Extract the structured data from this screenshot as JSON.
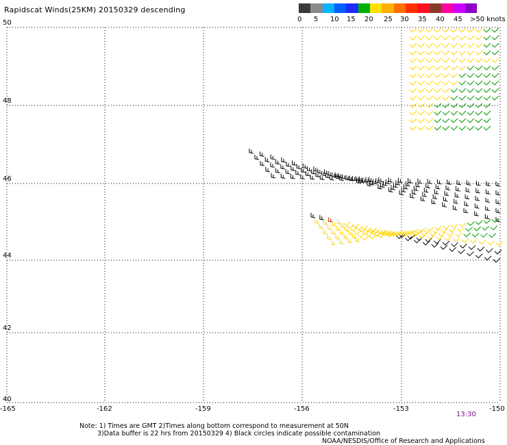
{
  "title": "Rapidscat Winds(25KM) 20150329 descending",
  "colorbar": {
    "colors": [
      "#3a3a3a",
      "#8a8a8a",
      "#00b4ff",
      "#0060ff",
      "#1c2cff",
      "#00b000",
      "#ffe000",
      "#ffb000",
      "#ff7000",
      "#ff3000",
      "#ff1020",
      "#8a3a2a",
      "#ff00a0",
      "#c800ff",
      "#8c00c8"
    ],
    "labels": [
      "0",
      "5",
      "10",
      "15",
      "20",
      "25",
      "30",
      "35",
      "40",
      "45",
      ">50 knots"
    ]
  },
  "axes": {
    "lat_labels": [
      "50",
      "48",
      "46",
      "44",
      "42",
      "40"
    ],
    "lon_labels": [
      "-165",
      "-162",
      "-159",
      "-156",
      "-153",
      "-150"
    ]
  },
  "time_label": "13:30",
  "notes": [
    "Note: 1) Times are GMT 2)Times along bottom correspond to measurement at 50N",
    "3)Data buffer is 22 hrs from 20150329 4) Black circles indicate possible contamination",
    "NOAA/NESDIS/Office of Research and Applications"
  ]
}
